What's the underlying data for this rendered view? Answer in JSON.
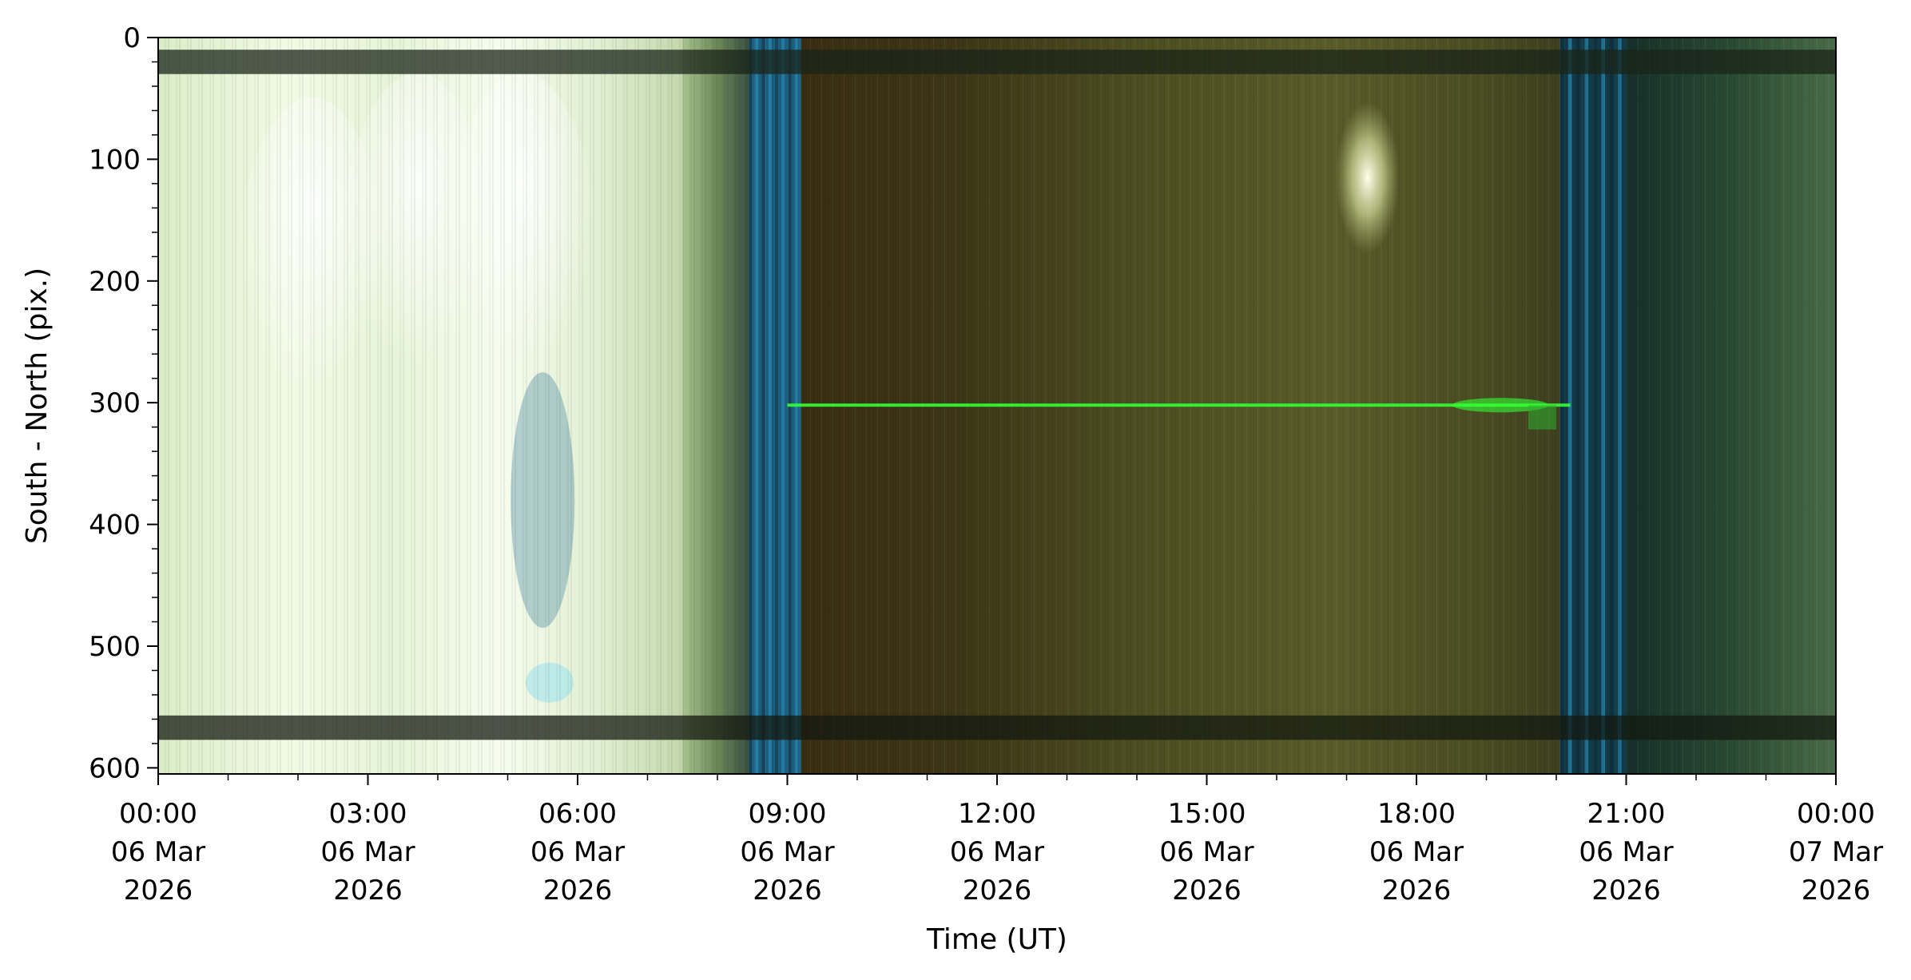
{
  "chart_data": {
    "type": "heatmap",
    "xlabel": "Time (UT)",
    "ylabel": "South - North (pix.)",
    "y_axis": {
      "range": [
        605,
        0
      ],
      "inverted": true,
      "major_ticks": [
        0,
        100,
        200,
        300,
        400,
        500,
        600
      ],
      "minor_step": 20
    },
    "x_axis": {
      "range_hours": [
        0,
        24
      ],
      "major_ticks": [
        {
          "hour": 0,
          "time": "00:00",
          "date": "06 Mar",
          "year": "2026"
        },
        {
          "hour": 3,
          "time": "03:00",
          "date": "06 Mar",
          "year": "2026"
        },
        {
          "hour": 6,
          "time": "06:00",
          "date": "06 Mar",
          "year": "2026"
        },
        {
          "hour": 9,
          "time": "09:00",
          "date": "06 Mar",
          "year": "2026"
        },
        {
          "hour": 12,
          "time": "12:00",
          "date": "06 Mar",
          "year": "2026"
        },
        {
          "hour": 15,
          "time": "15:00",
          "date": "06 Mar",
          "year": "2026"
        },
        {
          "hour": 18,
          "time": "18:00",
          "date": "06 Mar",
          "year": "2026"
        },
        {
          "hour": 21,
          "time": "21:00",
          "date": "06 Mar",
          "year": "2026"
        },
        {
          "hour": 24,
          "time": "00:00",
          "date": "07 Mar",
          "year": "2026"
        }
      ],
      "minor_step_hours": 1
    },
    "grid": false,
    "regions": [
      {
        "name": "bright-twilight",
        "x_start_hour": 0,
        "x_end_hour": 7.5,
        "color": "#e6f4d6"
      },
      {
        "name": "fading-twilight",
        "x_start_hour": 7.5,
        "x_end_hour": 8.45,
        "color": "#6e8a5a"
      },
      {
        "name": "blue-band-evening",
        "x_start_hour": 8.45,
        "x_end_hour": 9.2,
        "color": "#1e5f80"
      },
      {
        "name": "night-olive",
        "x_start_hour": 9.2,
        "x_end_hour": 20.05,
        "color": "#4a4a1e"
      },
      {
        "name": "blue-band-morning",
        "x_start_hour": 20.05,
        "x_end_hour": 21.0,
        "color": "#123a48"
      },
      {
        "name": "dawn-green",
        "x_start_hour": 21.0,
        "x_end_hour": 24,
        "color": "#2a4a30"
      }
    ],
    "features": [
      {
        "name": "green-horizontal-line",
        "y_pix": 302,
        "x_start_hour": 9.0,
        "x_end_hour": 20.2,
        "color": "#33ff33"
      },
      {
        "name": "bright-spot",
        "y_pix": 115,
        "x_hour": 17.3,
        "color": "#ffffe0"
      },
      {
        "name": "dark-band-top",
        "y_pix_start": 10,
        "y_pix_end": 30,
        "color": "#1a2418"
      },
      {
        "name": "dark-band-bottom",
        "y_pix_start": 557,
        "y_pix_end": 577,
        "color": "#141a10"
      }
    ]
  }
}
